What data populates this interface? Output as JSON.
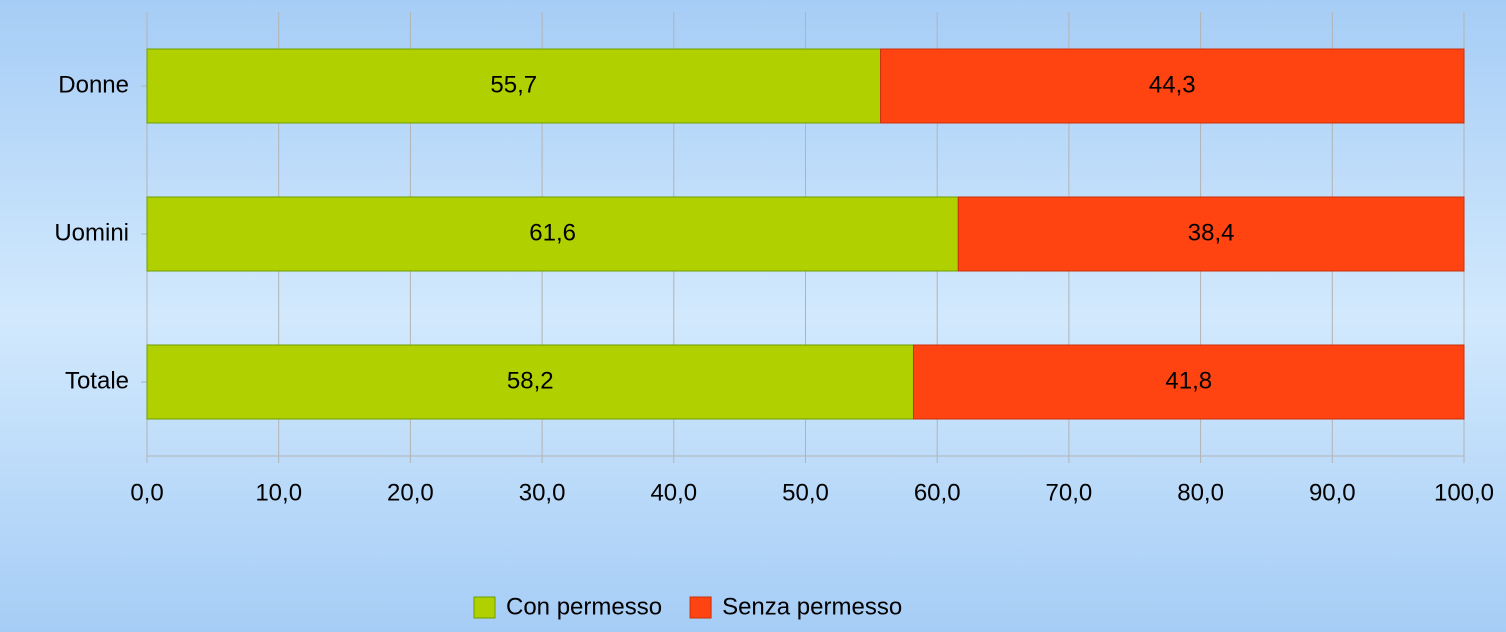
{
  "chart_data": {
    "type": "stacked-barh",
    "categories": [
      "Donne",
      "Uomini",
      "Totale"
    ],
    "series": [
      {
        "name": "Con permesso",
        "color": "#b0d000",
        "values": [
          55.7,
          61.6,
          58.2
        ],
        "value_labels": [
          "55,7",
          "61,6",
          "58,2"
        ]
      },
      {
        "name": "Senza permesso",
        "color": "#ff4411",
        "values": [
          44.3,
          38.4,
          41.8
        ],
        "value_labels": [
          "44,3",
          "38,4",
          "41,8"
        ]
      }
    ],
    "xlim": [
      0,
      100
    ],
    "xticks": [
      {
        "value": 0,
        "label": "0,0"
      },
      {
        "value": 10,
        "label": "10,0"
      },
      {
        "value": 20,
        "label": "20,0"
      },
      {
        "value": 30,
        "label": "30,0"
      },
      {
        "value": 40,
        "label": "40,0"
      },
      {
        "value": 50,
        "label": "50,0"
      },
      {
        "value": 60,
        "label": "60,0"
      },
      {
        "value": 70,
        "label": "70,0"
      },
      {
        "value": 80,
        "label": "80,0"
      },
      {
        "value": 90,
        "label": "90,0"
      },
      {
        "value": 100,
        "label": "100,0"
      }
    ],
    "grid": true,
    "legend": "bottom"
  }
}
